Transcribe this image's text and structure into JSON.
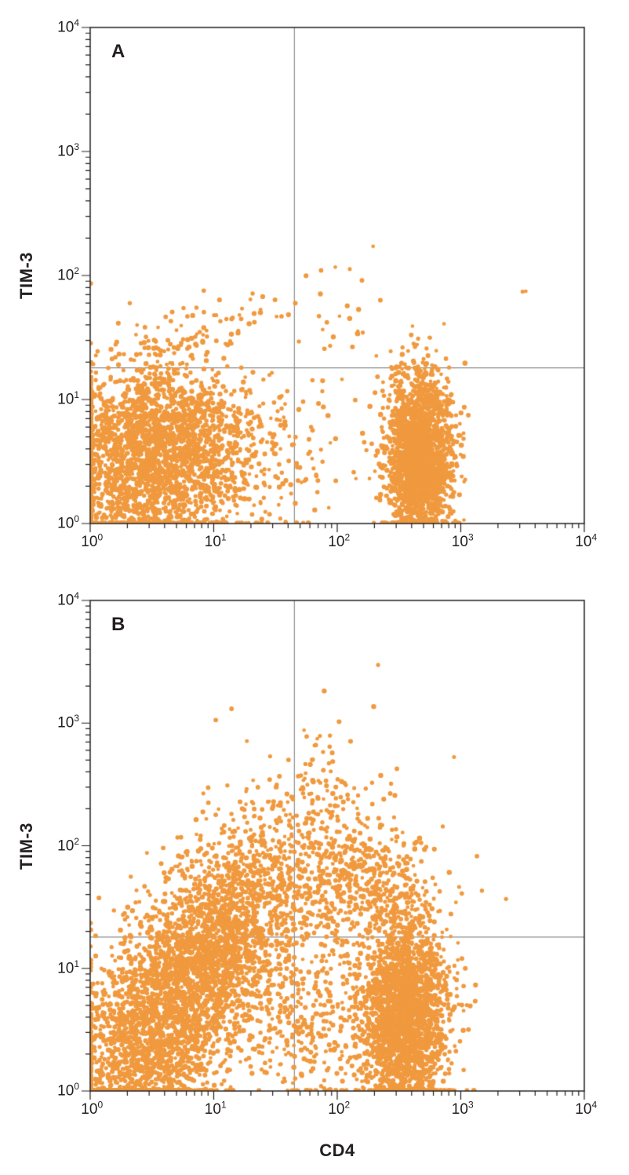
{
  "figure": {
    "background": "#ffffff",
    "description": "Two stacked flow cytometry dot plots (panels A and B) of TIM-3 vs CD4 with quadrant gates"
  },
  "chart_data": [
    {
      "type": "scatter",
      "panel_label": "A",
      "xlabel": "",
      "ylabel": "TIM-3",
      "x_scale": "log",
      "y_scale": "log",
      "x_range": [
        1,
        10000
      ],
      "y_range": [
        1,
        10000
      ],
      "x_tick_exponents": [
        0,
        1,
        2,
        3,
        4
      ],
      "y_tick_exponents": [
        0,
        1,
        2,
        3,
        4
      ],
      "quadrant_gates": {
        "x": 45,
        "y": 18
      },
      "dot_color": "#F0993E",
      "axis_color": "#231F20",
      "gate_color": "#8C8C8C",
      "populations": [
        {
          "name": "cd4-negative-tim3-low-cluster",
          "n": 2600,
          "cx": 0.52,
          "cy": 0.55,
          "sx": 0.4,
          "sy": 0.36,
          "corr": 0.05,
          "seed": 101
        },
        {
          "name": "low-mid-sparse",
          "n": 110,
          "cx": 1.45,
          "cy": 0.6,
          "sx": 0.32,
          "sy": 0.33,
          "corr": 0,
          "seed": 102
        },
        {
          "name": "cd4-positive-band",
          "n": 2100,
          "cx": 2.66,
          "cy": 0.55,
          "sx": 0.13,
          "sy": 0.33,
          "corr": 0,
          "seed": 103
        },
        {
          "name": "tim3-positive-left-scatter",
          "n": 80,
          "cx": 0.85,
          "cy": 1.52,
          "sx": 0.33,
          "sy": 0.16,
          "corr": 0.6,
          "seed": 104
        },
        {
          "name": "tim3-positive-mid-scatter",
          "n": 26,
          "cx": 2.05,
          "cy": 1.62,
          "sx": 0.18,
          "sy": 0.22,
          "corr": 0,
          "seed": 105
        },
        {
          "name": "far-right-outliers",
          "n": 2,
          "cx": 3.52,
          "cy": 1.84,
          "sx": 0.02,
          "sy": 0.05,
          "corr": 0,
          "seed": 106
        }
      ],
      "units": "population centers (cx,cy) and spreads (sx,sy) are in log10 fluorescence-intensity decades"
    },
    {
      "type": "scatter",
      "panel_label": "B",
      "xlabel": "CD4",
      "ylabel": "TIM-3",
      "x_scale": "log",
      "y_scale": "log",
      "x_range": [
        1,
        10000
      ],
      "y_range": [
        1,
        10000
      ],
      "x_tick_exponents": [
        0,
        1,
        2,
        3,
        4
      ],
      "y_tick_exponents": [
        0,
        1,
        2,
        3,
        4
      ],
      "quadrant_gates": {
        "x": 45,
        "y": 18
      },
      "dot_color": "#F0993E",
      "axis_color": "#231F20",
      "gate_color": "#8C8C8C",
      "populations": [
        {
          "name": "diagonal-activated-cloud",
          "n": 4200,
          "cx": 0.78,
          "cy": 0.85,
          "sx": 0.5,
          "sy": 0.7,
          "corr": 0.72,
          "seed": 201
        },
        {
          "name": "cd4-positive-band",
          "n": 2300,
          "cx": 2.55,
          "cy": 0.62,
          "sx": 0.17,
          "sy": 0.4,
          "corr": 0,
          "seed": 202
        },
        {
          "name": "cd4-pos-tim3-pos-scatter",
          "n": 520,
          "cx": 2.2,
          "cy": 1.7,
          "sx": 0.3,
          "sy": 0.3,
          "corr": -0.1,
          "seed": 203
        },
        {
          "name": "top-sparse-dots",
          "n": 14,
          "cx": 1.98,
          "cy": 2.5,
          "sx": 0.12,
          "sy": 0.12,
          "corr": 0,
          "seed": 204
        },
        {
          "name": "mid-low-fill",
          "n": 330,
          "cx": 1.85,
          "cy": 0.55,
          "sx": 0.28,
          "sy": 0.38,
          "corr": 0,
          "seed": 205
        }
      ],
      "units": "population centers (cx,cy) and spreads (sx,sy) are in log10 fluorescence-intensity decades"
    }
  ]
}
